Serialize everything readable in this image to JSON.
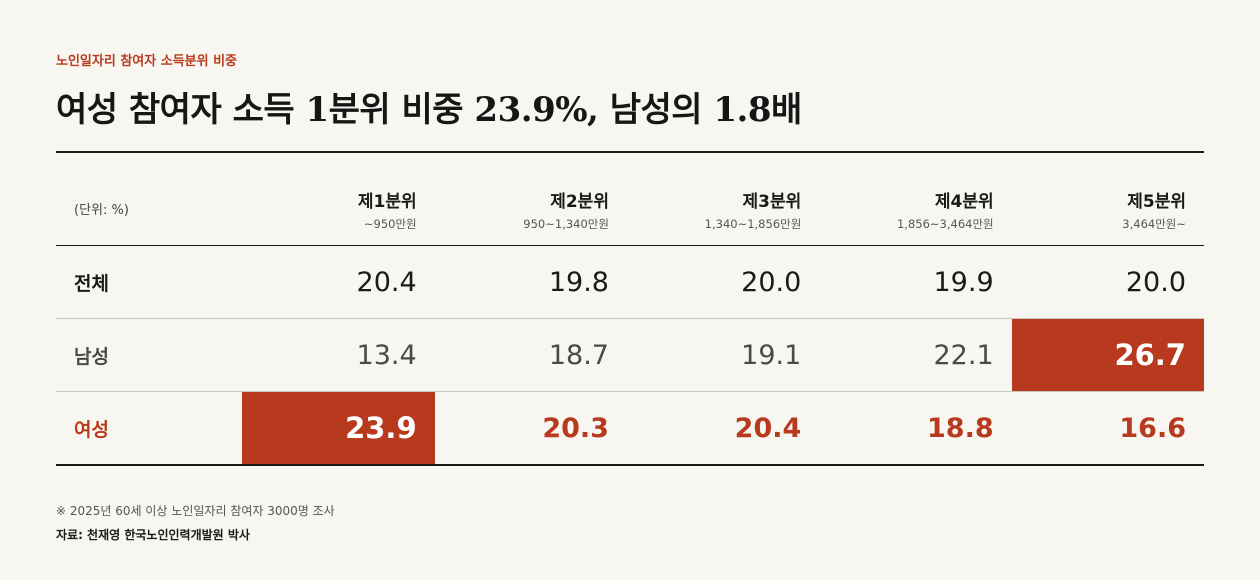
{
  "kicker": "노인일자리 참여자 소득분위 비중",
  "headline": "여성 참여자 소득 1분위 비중 23.9%, 남성의 1.8배",
  "unit_label": "(단위: %)",
  "quintiles": [
    {
      "name": "제1분위",
      "range": "~950만원"
    },
    {
      "name": "제2분위",
      "range": "950~1,340만원"
    },
    {
      "name": "제3분위",
      "range": "1,340~1,856만원"
    },
    {
      "name": "제4분위",
      "range": "1,856~3,464만원"
    },
    {
      "name": "제5분위",
      "range": "3,464만원~"
    }
  ],
  "rows": [
    {
      "label": "전체",
      "values": [
        "20.4",
        "19.8",
        "20.0",
        "19.9",
        "20.0"
      ]
    },
    {
      "label": "남성",
      "values": [
        "13.4",
        "18.7",
        "19.1",
        "22.1",
        "26.7"
      ]
    },
    {
      "label": "여성",
      "values": [
        "23.9",
        "20.3",
        "20.4",
        "18.8",
        "16.6"
      ]
    }
  ],
  "highlight_color": "#b83a1e",
  "note": "※ 2025년 60세 이상 노인일자리 참여자 3000명 조사",
  "source": "자료: 천재영 한국노인인력개발원 박사"
}
